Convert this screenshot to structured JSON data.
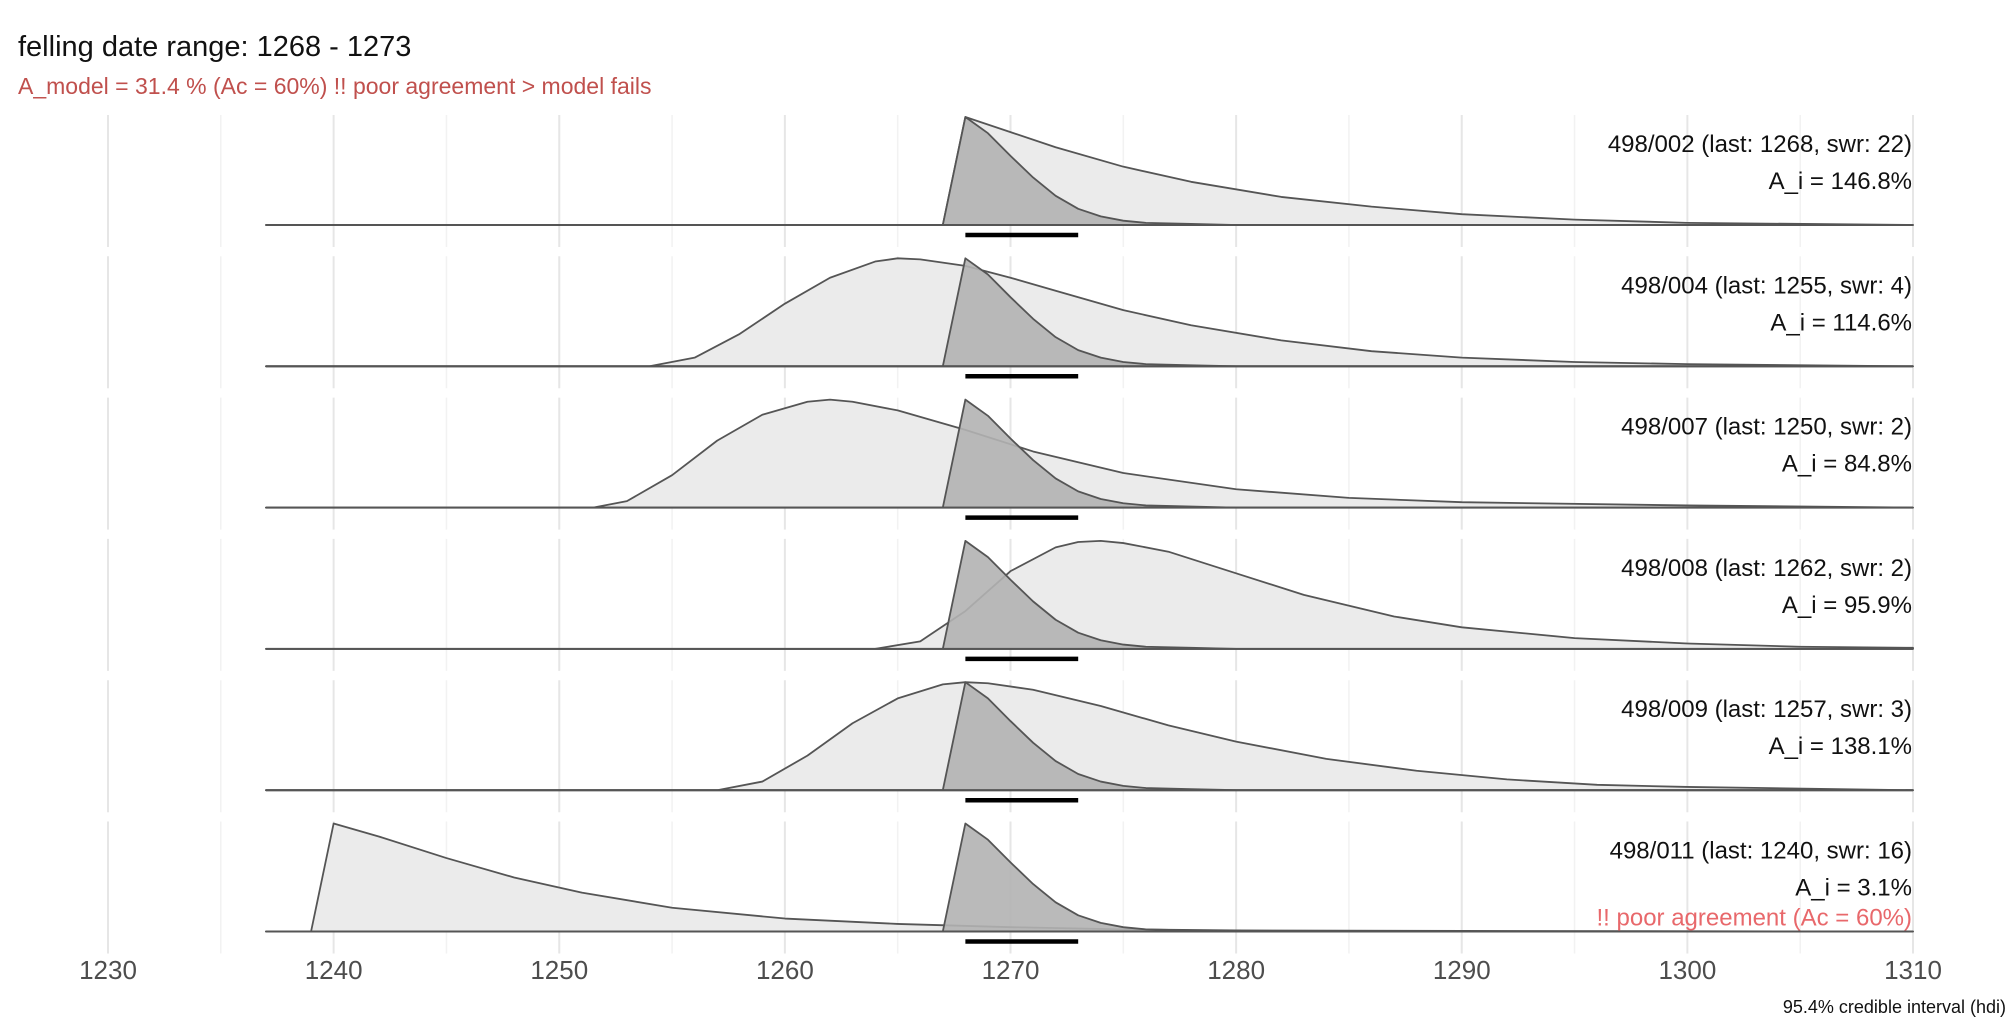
{
  "title": "felling date range:  1268  -  1273",
  "subtitle": "A_model =  31.4 % (Ac = 60%)  !! poor agreement > model fails",
  "caption": "95.4% credible interval (hdi)",
  "colors": {
    "subtitle": "#c0504d",
    "warning": "#e8686b",
    "raw_fill": "#ebebeb",
    "model_fill": "#b3b3b3",
    "outline": "#555555",
    "grid_major": "#e6e6e6",
    "grid_minor": "#f2f2f2",
    "interval": "#000000"
  },
  "chart_data": {
    "type": "area",
    "x_range": [
      1230,
      1310
    ],
    "x_ticks": [
      1230,
      1240,
      1250,
      1260,
      1270,
      1280,
      1290,
      1300,
      1310
    ],
    "felling_range": [
      1268,
      1273
    ],
    "model_density": {
      "x": [
        1267,
        1268,
        1269,
        1270,
        1271,
        1272,
        1273,
        1274,
        1275,
        1276,
        1278,
        1280,
        1310
      ],
      "y": [
        0,
        1,
        0.85,
        0.64,
        0.44,
        0.27,
        0.15,
        0.08,
        0.04,
        0.02,
        0.01,
        0,
        0
      ]
    },
    "hdi": [
      1268,
      1273
    ],
    "series": [
      {
        "name": "498/002",
        "label": "498/002 (last: 1268, swr: 22)",
        "agreement": "A_i = 146.8%",
        "warning": "",
        "raw_density": {
          "x": [
            1267,
            1268,
            1270,
            1272,
            1275,
            1278,
            1282,
            1286,
            1290,
            1295,
            1300,
            1310
          ],
          "y": [
            0,
            1,
            0.86,
            0.72,
            0.54,
            0.4,
            0.26,
            0.17,
            0.1,
            0.05,
            0.02,
            0
          ]
        }
      },
      {
        "name": "498/004",
        "label": "498/004 (last: 1255, swr: 4)",
        "agreement": "A_i = 114.6%",
        "warning": "",
        "raw_density": {
          "x": [
            1254,
            1256,
            1258,
            1260,
            1262,
            1264,
            1265,
            1266,
            1268,
            1270,
            1272,
            1275,
            1278,
            1282,
            1286,
            1290,
            1295,
            1300,
            1310
          ],
          "y": [
            0,
            0.08,
            0.3,
            0.58,
            0.82,
            0.97,
            1,
            0.99,
            0.93,
            0.82,
            0.7,
            0.52,
            0.38,
            0.24,
            0.14,
            0.08,
            0.04,
            0.02,
            0
          ]
        }
      },
      {
        "name": "498/007",
        "label": "498/007 (last: 1250, swr: 2)",
        "agreement": "A_i = 84.8%",
        "warning": "",
        "raw_density": {
          "x": [
            1251.5,
            1253,
            1255,
            1257,
            1259,
            1261,
            1262,
            1263,
            1265,
            1268,
            1271,
            1275,
            1280,
            1285,
            1290,
            1300,
            1310
          ],
          "y": [
            0,
            0.06,
            0.3,
            0.62,
            0.86,
            0.98,
            1,
            0.98,
            0.9,
            0.72,
            0.52,
            0.32,
            0.17,
            0.09,
            0.05,
            0.02,
            0
          ]
        }
      },
      {
        "name": "498/008",
        "label": "498/008 (last: 1262, swr: 2)",
        "agreement": "A_i = 95.9%",
        "warning": "",
        "raw_density": {
          "x": [
            1264,
            1266,
            1268,
            1270,
            1272,
            1273,
            1274,
            1275,
            1277,
            1280,
            1283,
            1287,
            1290,
            1295,
            1300,
            1305,
            1310
          ],
          "y": [
            0,
            0.07,
            0.35,
            0.72,
            0.94,
            0.99,
            1,
            0.98,
            0.9,
            0.7,
            0.5,
            0.3,
            0.2,
            0.1,
            0.05,
            0.02,
            0.01
          ]
        }
      },
      {
        "name": "498/009",
        "label": "498/009 (last: 1257, swr: 3)",
        "agreement": "A_i = 138.1%",
        "warning": "",
        "raw_density": {
          "x": [
            1257,
            1259,
            1261,
            1263,
            1265,
            1267,
            1268,
            1269,
            1271,
            1274,
            1277,
            1280,
            1284,
            1288,
            1292,
            1296,
            1300,
            1310
          ],
          "y": [
            0,
            0.08,
            0.32,
            0.62,
            0.85,
            0.98,
            1,
            0.99,
            0.93,
            0.78,
            0.6,
            0.45,
            0.29,
            0.18,
            0.1,
            0.05,
            0.03,
            0
          ]
        }
      },
      {
        "name": "498/011",
        "label": "498/011 (last: 1240, swr: 16)",
        "agreement": "A_i = 3.1%",
        "warning": "!! poor agreement (Ac = 60%)",
        "raw_density": {
          "x": [
            1239,
            1240,
            1242,
            1245,
            1248,
            1251,
            1255,
            1260,
            1265,
            1270,
            1275,
            1280,
            1290,
            1310
          ],
          "y": [
            0,
            1,
            0.88,
            0.68,
            0.5,
            0.36,
            0.22,
            0.12,
            0.07,
            0.04,
            0.02,
            0.01,
            0.005,
            0
          ]
        }
      }
    ]
  }
}
